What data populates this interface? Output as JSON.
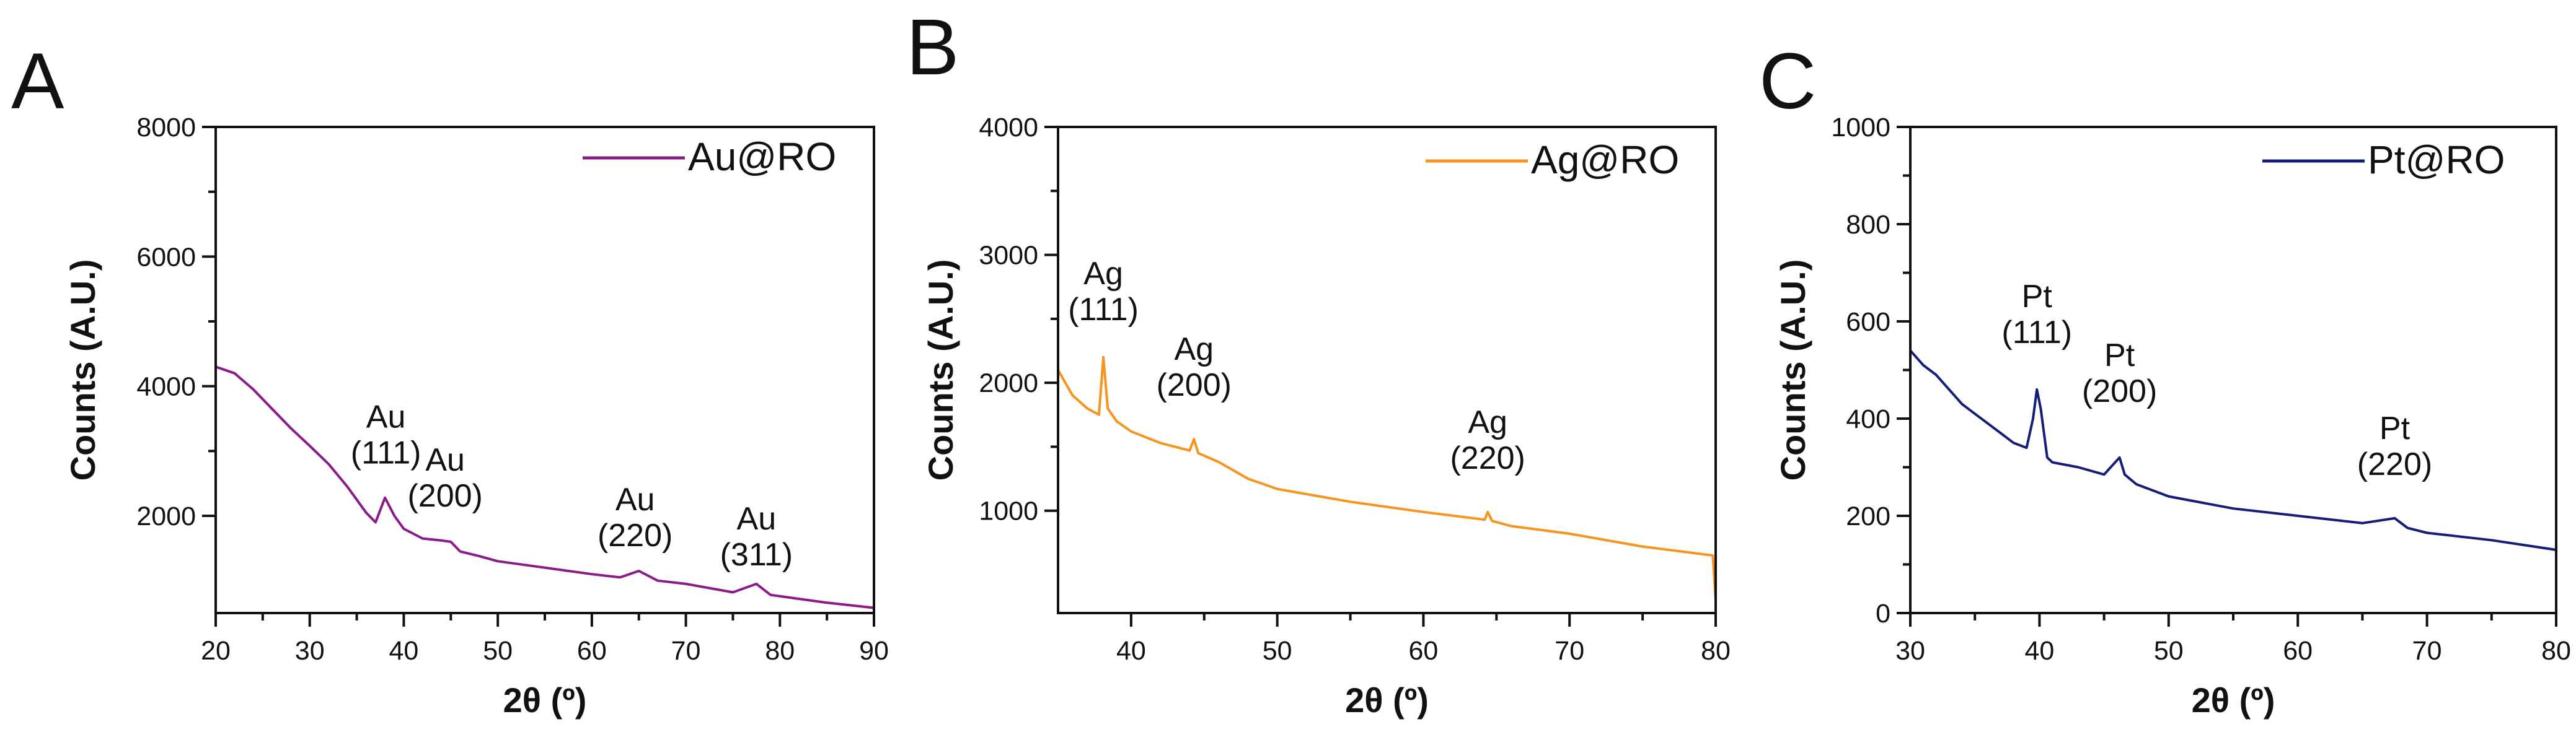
{
  "chart_data": [
    {
      "panel": "A",
      "type": "line",
      "xlabel": "2θ (º)",
      "ylabel": "Counts (A.U.)",
      "xlim": [
        20,
        90
      ],
      "ylim": [
        500,
        8000
      ],
      "xticks": [
        20,
        30,
        40,
        50,
        60,
        70,
        80,
        90
      ],
      "yticks": [
        2000,
        4000,
        6000,
        8000
      ],
      "legend": "top-right",
      "series": [
        {
          "name": "Au@RO",
          "color": "#8b1a8b",
          "x": [
            20,
            22,
            24,
            26,
            28,
            30,
            32,
            34,
            36,
            37,
            38,
            39,
            40,
            42,
            44,
            45,
            46,
            48,
            50,
            55,
            60,
            63,
            65,
            67,
            70,
            75,
            77.5,
            79,
            82,
            85,
            90
          ],
          "y": [
            4300,
            4200,
            3950,
            3650,
            3350,
            3080,
            2800,
            2450,
            2050,
            1900,
            2280,
            2000,
            1800,
            1650,
            1620,
            1600,
            1450,
            1380,
            1300,
            1200,
            1100,
            1050,
            1150,
            1000,
            950,
            820,
            950,
            780,
            720,
            660,
            580
          ]
        }
      ],
      "annotations": [
        {
          "line1": "Au",
          "line2": "(111)",
          "x": 38.1
        },
        {
          "line1": "Au",
          "line2": "(200)",
          "x": 44.4
        },
        {
          "line1": "Au",
          "line2": "(220)",
          "x": 64.6
        },
        {
          "line1": "Au",
          "line2": "(311)",
          "x": 77.5
        }
      ]
    },
    {
      "panel": "B",
      "type": "line",
      "xlabel": "2θ (º)",
      "ylabel": "Counts (A.U.)",
      "xlim": [
        35,
        80
      ],
      "ylim": [
        200,
        4000
      ],
      "xticks": [
        40,
        50,
        60,
        70,
        80
      ],
      "yticks": [
        1000,
        2000,
        3000,
        4000
      ],
      "legend": "top-right",
      "series": [
        {
          "name": "Ag@RO",
          "color": "#f7941d",
          "x": [
            35,
            36,
            37,
            37.8,
            38.1,
            38.4,
            39,
            40,
            42,
            44,
            44.3,
            44.6,
            46,
            48,
            50,
            55,
            60,
            64.2,
            64.4,
            64.7,
            66,
            70,
            75,
            79.8,
            80
          ],
          "y": [
            2100,
            1900,
            1800,
            1750,
            2200,
            1800,
            1700,
            1620,
            1530,
            1470,
            1560,
            1450,
            1380,
            1250,
            1170,
            1070,
            990,
            930,
            990,
            920,
            880,
            820,
            720,
            650,
            300
          ]
        }
      ],
      "annotations": [
        {
          "line1": "Ag",
          "line2": "(111)",
          "x": 38.1
        },
        {
          "line1": "Ag",
          "line2": "(200)",
          "x": 44.3
        },
        {
          "line1": "Ag",
          "line2": "(220)",
          "x": 64.4
        }
      ]
    },
    {
      "panel": "C",
      "type": "line",
      "xlabel": "2θ (º)",
      "ylabel": "Counts (A.U.)",
      "xlim": [
        30,
        80
      ],
      "ylim": [
        0,
        1000
      ],
      "xticks": [
        30,
        40,
        50,
        60,
        70,
        80
      ],
      "yticks": [
        0,
        200,
        400,
        600,
        800,
        1000
      ],
      "legend": "top-right",
      "series": [
        {
          "name": "Pt@RO",
          "color": "#141e78",
          "x": [
            30,
            31,
            32,
            33,
            34,
            35,
            36,
            37,
            38,
            39,
            39.5,
            39.8,
            40.1,
            40.6,
            41,
            43,
            45,
            46.2,
            46.6,
            47.5,
            50,
            55,
            60,
            65,
            67.5,
            68.5,
            70,
            75,
            80
          ],
          "y": [
            540,
            510,
            490,
            460,
            430,
            410,
            390,
            370,
            350,
            340,
            400,
            460,
            420,
            320,
            310,
            300,
            285,
            320,
            285,
            265,
            240,
            215,
            200,
            185,
            195,
            175,
            165,
            150,
            130
          ]
        }
      ],
      "annotations": [
        {
          "line1": "Pt",
          "line2": "(111)",
          "x": 39.8
        },
        {
          "line1": "Pt",
          "line2": "(200)",
          "x": 46.2
        },
        {
          "line1": "Pt",
          "line2": "(220)",
          "x": 67.5
        }
      ]
    }
  ]
}
